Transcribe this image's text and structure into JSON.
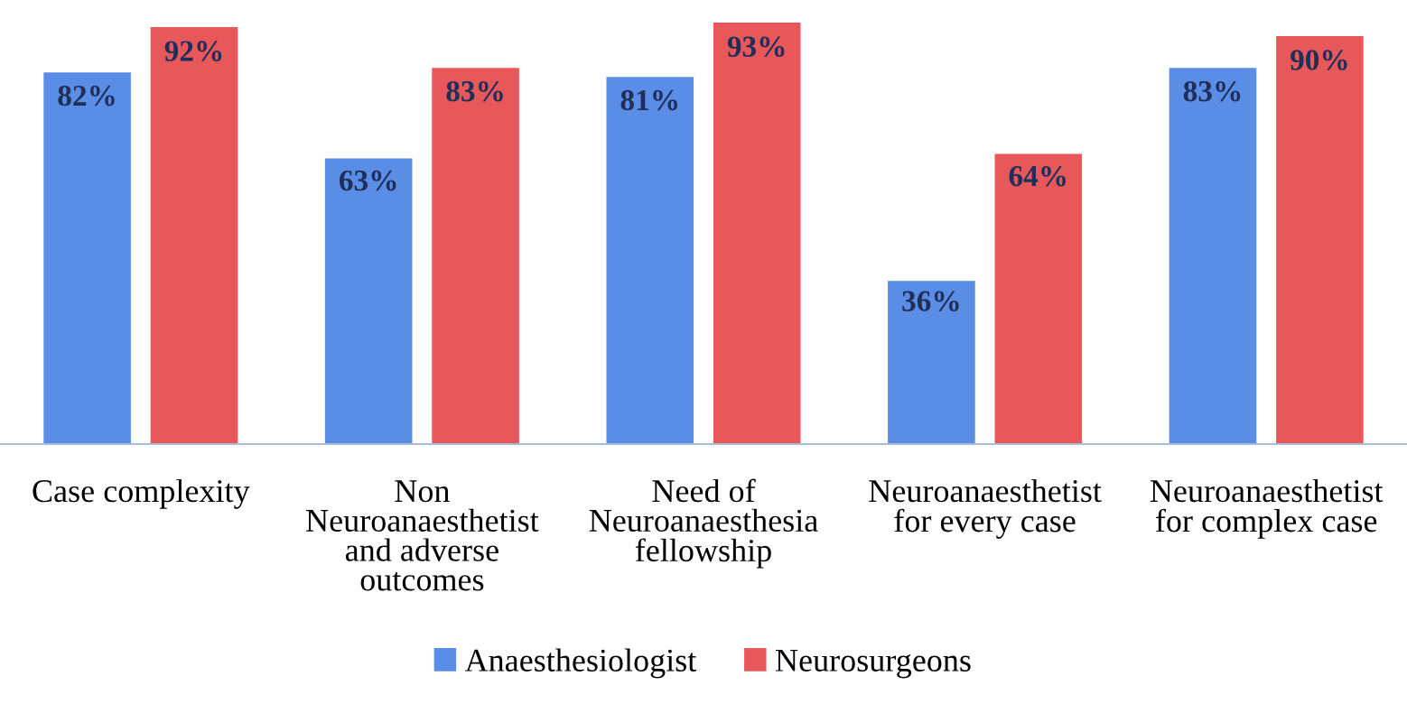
{
  "chart_data": {
    "type": "bar",
    "categories": [
      "Case complexity",
      "Non\nNeuroanaesthetist\nand adverse\noutcomes",
      "Need of\nNeuroanaesthesia\nfellowship",
      "Neuroanaesthetist\nfor every case",
      "Neuroanaesthetist\nfor complex case"
    ],
    "series": [
      {
        "name": "Anaesthesiologist",
        "color": "#5a8ee6",
        "values": [
          82,
          63,
          81,
          36,
          83
        ],
        "value_labels": [
          "82%",
          "63%",
          "81%",
          "36%",
          "83%"
        ]
      },
      {
        "name": "Neurosurgeons",
        "color": "#e8585a",
        "values": [
          92,
          83,
          93,
          64,
          90
        ],
        "value_labels": [
          "92%",
          "83%",
          "93%",
          "64%",
          "90%"
        ]
      }
    ],
    "legend": "bottom",
    "grid": false
  }
}
